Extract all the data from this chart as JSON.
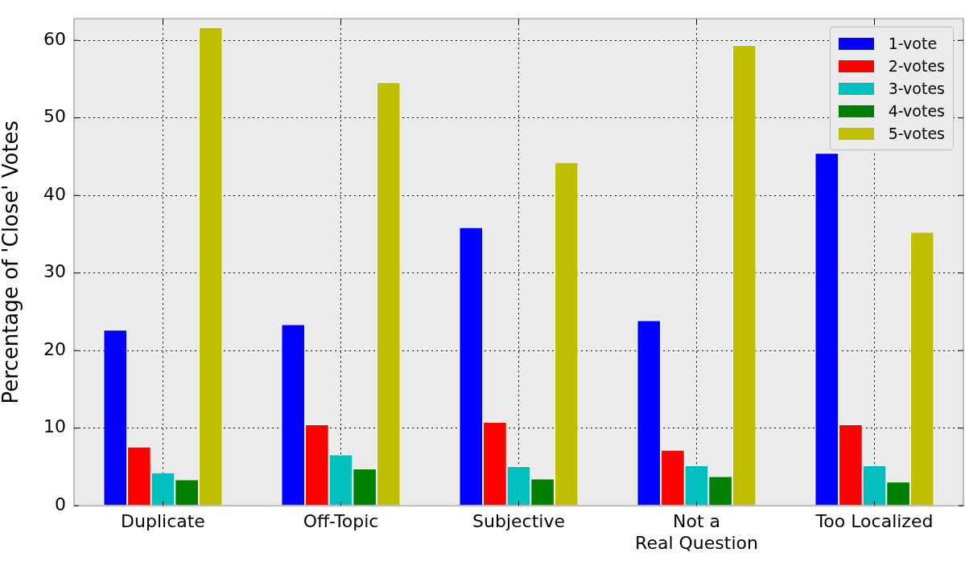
{
  "chart_data": {
    "type": "bar",
    "ylabel": "Percentage of 'Close' Votes",
    "categories": [
      "Duplicate",
      "Off-Topic",
      "Subjective",
      "Not a\nReal Question",
      "Too Localized"
    ],
    "series": [
      {
        "name": "1-vote",
        "color": "#0000ff",
        "values": [
          22.7,
          23.4,
          35.9,
          23.9,
          45.5
        ]
      },
      {
        "name": "2-votes",
        "color": "#ff0000",
        "values": [
          7.6,
          10.5,
          10.8,
          7.2,
          10.5
        ]
      },
      {
        "name": "3-votes",
        "color": "#00bfbf",
        "values": [
          4.3,
          6.6,
          5.1,
          5.2,
          5.2
        ]
      },
      {
        "name": "4-votes",
        "color": "#008000",
        "values": [
          3.4,
          4.8,
          3.5,
          3.8,
          3.1
        ]
      },
      {
        "name": "5-votes",
        "color": "#bfbf00",
        "values": [
          61.7,
          54.6,
          44.3,
          59.4,
          35.3
        ]
      }
    ],
    "ylim": [
      0,
      62.8
    ],
    "yticks": [
      0,
      10,
      20,
      30,
      40,
      50,
      60
    ],
    "grid": true,
    "legend": "top right"
  }
}
